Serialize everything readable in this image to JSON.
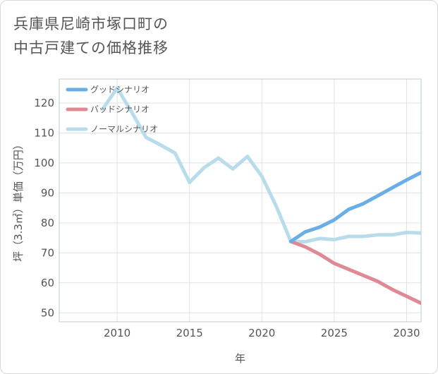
{
  "chart_data": {
    "type": "line",
    "title_lines": [
      "兵庫県尼崎市塚口町の",
      "中古戸建ての価格推移"
    ],
    "xlabel": "年",
    "ylabel": "坪（3.3㎡）単価（万円）",
    "xlim": [
      2006,
      2031
    ],
    "ylim": [
      47,
      128
    ],
    "xticks": [
      2010,
      2015,
      2020,
      2025,
      2030
    ],
    "yticks": [
      50,
      60,
      70,
      80,
      90,
      100,
      110,
      120
    ],
    "grid": true,
    "legend_position": "top-left",
    "series": [
      {
        "name": "グッドシナリオ",
        "color": "#6aaee6",
        "x": [
          2022,
          2023,
          2024,
          2025,
          2026,
          2027,
          2028,
          2029,
          2030,
          2031
        ],
        "y": [
          73.8,
          77,
          78.6,
          81,
          84.5,
          86.4,
          89,
          91.7,
          94.3,
          96.8
        ]
      },
      {
        "name": "バッドシナリオ",
        "color": "#de8993",
        "x": [
          2022,
          2023,
          2024,
          2025,
          2026,
          2027,
          2028,
          2029,
          2030,
          2031
        ],
        "y": [
          73.8,
          72,
          69.5,
          66.5,
          64.5,
          62.5,
          60.5,
          57.8,
          55.5,
          53.2
        ]
      },
      {
        "name": "ノーマルシナリオ",
        "color": "#b9dcea",
        "x": [
          2009,
          2010,
          2011,
          2012,
          2013,
          2014,
          2015,
          2016,
          2017,
          2018,
          2019,
          2020,
          2021,
          2022,
          2023,
          2024,
          2025,
          2026,
          2027,
          2028,
          2029,
          2030,
          2031
        ],
        "y": [
          118,
          125,
          117,
          108.5,
          106,
          103.3,
          93.5,
          98.4,
          101.6,
          98,
          102.2,
          95.5,
          85.5,
          73.8,
          73.7,
          74.8,
          74.4,
          75.5,
          75.5,
          76,
          76,
          76.8,
          76.6
        ]
      }
    ]
  }
}
